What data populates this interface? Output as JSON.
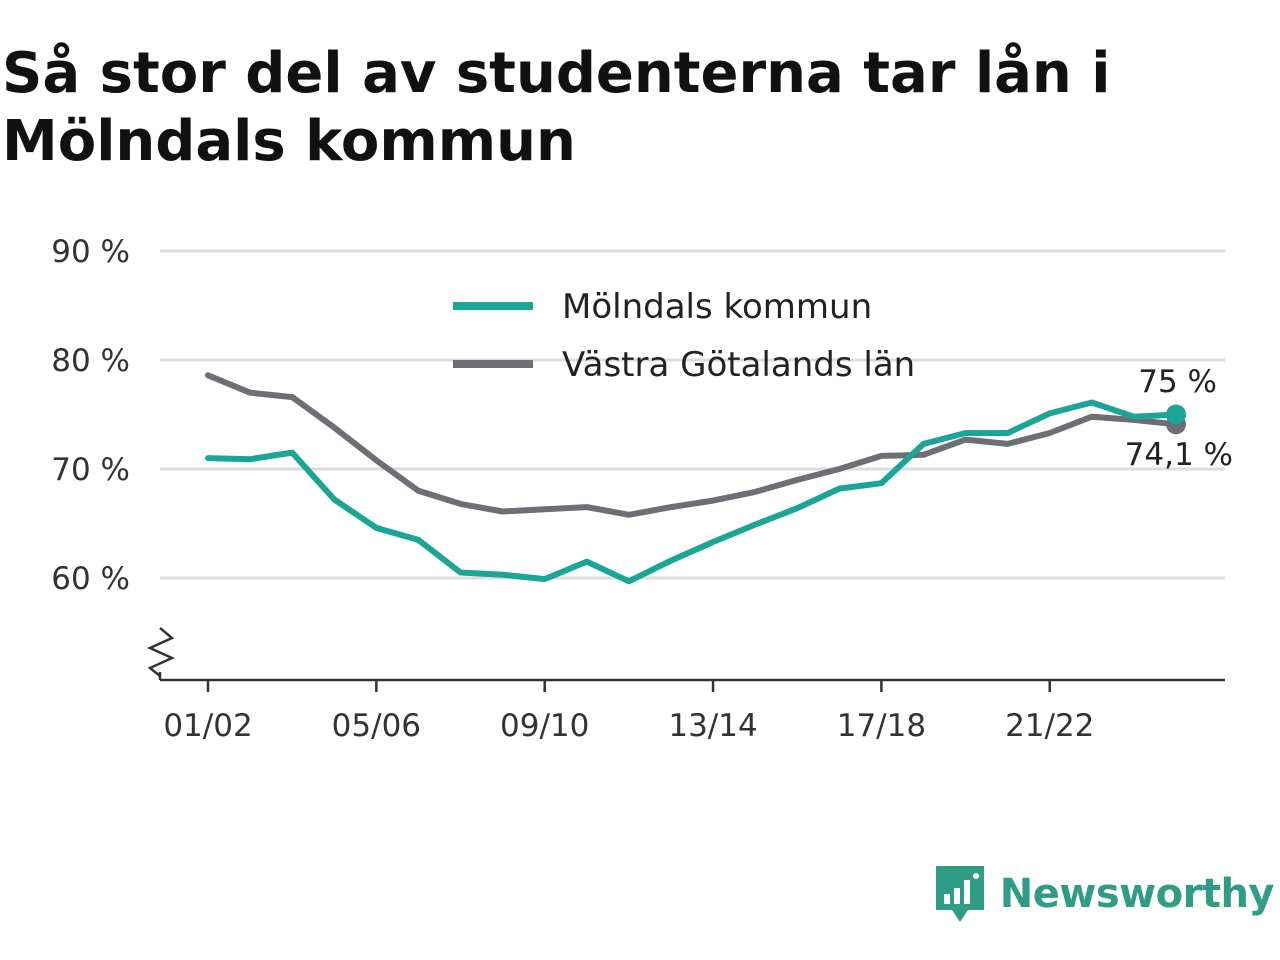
{
  "title": "Så stor del av studenterna tar lån i Mölndals kommun",
  "brand": {
    "name": "Newsworthy",
    "icon": "newsworthy-logo-icon",
    "color": "#2f9c86"
  },
  "chart_data": {
    "type": "line",
    "title": "Så stor del av studenterna tar lån i Mölndals kommun",
    "xlabel": "",
    "ylabel": "",
    "ylim": [
      50.5,
      90
    ],
    "yticks": [
      60,
      70,
      80,
      90
    ],
    "ytick_labels": [
      "60 %",
      "70 %",
      "80 %",
      "90 %"
    ],
    "y_axis_break": true,
    "grid": true,
    "legend_position": "top-center",
    "categories": [
      "01/02",
      "02/03",
      "03/04",
      "04/05",
      "05/06",
      "06/07",
      "07/08",
      "08/09",
      "09/10",
      "10/11",
      "11/12",
      "12/13",
      "13/14",
      "14/15",
      "15/16",
      "16/17",
      "17/18",
      "18/19",
      "19/20",
      "20/21",
      "21/22",
      "22/23",
      "23/24",
      "24/25"
    ],
    "xtick_labels": [
      "01/02",
      "05/06",
      "09/10",
      "13/14",
      "17/18",
      "21/22"
    ],
    "series": [
      {
        "name": "Mölndals kommun",
        "color": "#1aa597",
        "end_label": "75 %",
        "values": [
          71.0,
          70.9,
          71.5,
          67.2,
          64.6,
          63.5,
          60.5,
          60.3,
          59.9,
          61.5,
          59.7,
          61.6,
          63.3,
          64.9,
          66.4,
          68.2,
          68.7,
          72.3,
          73.3,
          73.3,
          75.1,
          76.1,
          74.8,
          75.0
        ]
      },
      {
        "name": "Västra Götalands län",
        "color": "#6e6e74",
        "end_label": "74,1 %",
        "values": [
          78.6,
          77.0,
          76.6,
          73.8,
          70.8,
          68.0,
          66.8,
          66.1,
          66.3,
          66.5,
          65.8,
          66.5,
          67.1,
          67.9,
          69.0,
          70.0,
          71.2,
          71.3,
          72.7,
          72.3,
          73.3,
          74.8,
          74.5,
          74.1
        ]
      }
    ]
  }
}
